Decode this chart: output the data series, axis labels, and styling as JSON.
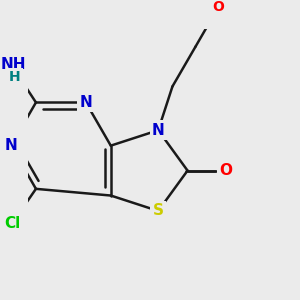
{
  "bg_color": "#ebebeb",
  "bond_color": "#1a1a1a",
  "bond_width": 1.8,
  "atom_colors": {
    "N": "#0000cc",
    "S": "#cccc00",
    "O": "#ff0000",
    "Cl": "#00cc00",
    "H": "#008080",
    "NH2_N": "#0000cc"
  },
  "font_size": 11,
  "figsize": [
    3.0,
    3.0
  ],
  "dpi": 100,
  "xlim": [
    -1.5,
    5.5
  ],
  "ylim": [
    -3.5,
    3.5
  ]
}
